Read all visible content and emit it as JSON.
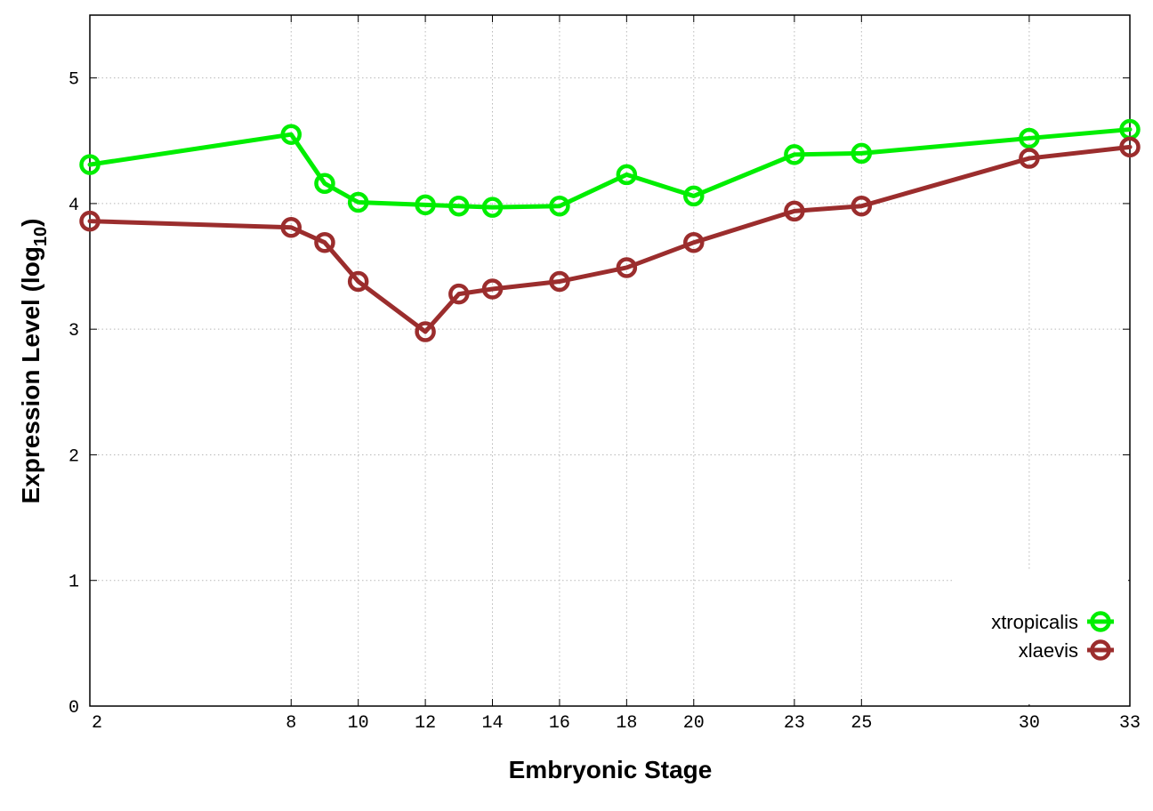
{
  "chart_data": {
    "type": "line",
    "xlabel": "Embryonic Stage",
    "ylabel_main": "Expression Level (log",
    "ylabel_sub": "10",
    "ylabel_close": ")",
    "xlim": [
      2,
      33
    ],
    "ylim": [
      0,
      5.5
    ],
    "x_ticks": [
      2,
      8,
      10,
      12,
      14,
      16,
      18,
      20,
      23,
      25,
      30,
      33
    ],
    "x_tick_labels": [
      "2",
      "8",
      "10",
      "12",
      "14",
      "16",
      "18",
      "20",
      "23",
      "25",
      "30",
      "33"
    ],
    "y_ticks": [
      0,
      1,
      2,
      3,
      4,
      5
    ],
    "y_tick_labels": [
      "0",
      "1",
      "2",
      "3",
      "4",
      "5"
    ],
    "grid": true,
    "legend_position": "bottom-right",
    "series": [
      {
        "name": "xtropicalis",
        "color": "#00ee00",
        "x": [
          2,
          8,
          9,
          10,
          12,
          13,
          14,
          16,
          18,
          20,
          23,
          25,
          30,
          33
        ],
        "y": [
          4.31,
          4.55,
          4.16,
          4.01,
          3.99,
          3.98,
          3.97,
          3.98,
          4.23,
          4.06,
          4.39,
          4.4,
          4.52,
          4.59
        ]
      },
      {
        "name": "xlaevis",
        "color": "#9b2d2d",
        "x": [
          2,
          8,
          9,
          10,
          12,
          13,
          14,
          16,
          18,
          20,
          23,
          25,
          30,
          33
        ],
        "y": [
          3.86,
          3.81,
          3.69,
          3.38,
          2.98,
          3.28,
          3.32,
          3.38,
          3.49,
          3.69,
          3.94,
          3.98,
          4.36,
          4.45
        ]
      }
    ]
  }
}
